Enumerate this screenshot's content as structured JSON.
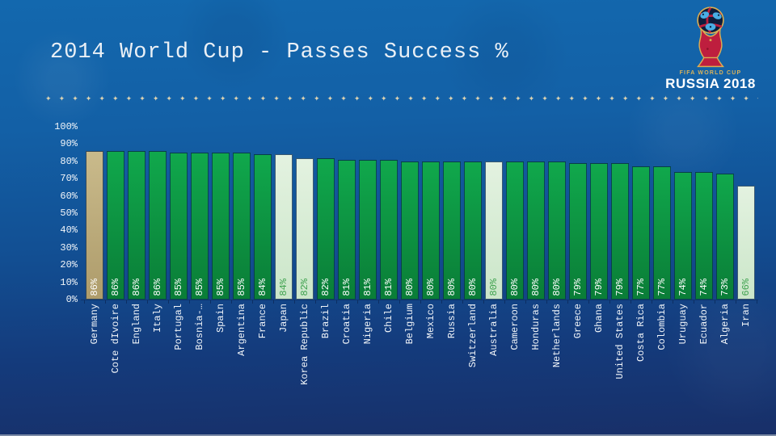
{
  "slide": {
    "title": "2014 World Cup - Passes Success %",
    "divider": {
      "glyph": "✦",
      "count": 108
    },
    "logo": {
      "fifa_line": "FIFA WORLD CUP",
      "russia_line": "RUSSIA 2018"
    }
  },
  "chart_data": {
    "type": "bar",
    "title": "2014 World Cup - Passes Success %",
    "categories": [
      "Germany",
      "Cote dIvoire",
      "England",
      "Italy",
      "Portugal",
      "Bosnia-…",
      "Spain",
      "Argentina",
      "France",
      "Japan",
      "Korea Republic",
      "Brazil",
      "Croatia",
      "Nigeria",
      "Chile",
      "Belgium",
      "Mexico",
      "Russia",
      "Switzerland",
      "Australia",
      "Cameroon",
      "Honduras",
      "Netherlands",
      "Greece",
      "Ghana",
      "United States",
      "Costa Rica",
      "Colombia",
      "Uruguay",
      "Ecuador",
      "Algeria",
      "Iran"
    ],
    "values": [
      86,
      86,
      86,
      86,
      85,
      85,
      85,
      85,
      84,
      84,
      82,
      82,
      81,
      81,
      81,
      80,
      80,
      80,
      80,
      80,
      80,
      80,
      80,
      79,
      79,
      79,
      77,
      77,
      74,
      74,
      73,
      66
    ],
    "value_labels": [
      "86%",
      "86%",
      "86%",
      "86%",
      "85%",
      "85%",
      "85%",
      "85%",
      "84%",
      "84%",
      "82%",
      "82%",
      "81%",
      "81%",
      "81%",
      "80%",
      "80%",
      "80%",
      "80%",
      "80%",
      "80%",
      "80%",
      "80%",
      "79%",
      "79%",
      "79%",
      "77%",
      "77%",
      "74%",
      "74%",
      "73%",
      "66%"
    ],
    "bar_styles": [
      "gold",
      "green",
      "green",
      "green",
      "green",
      "green",
      "green",
      "green",
      "green",
      "pale",
      "pale",
      "green",
      "green",
      "green",
      "green",
      "green",
      "green",
      "green",
      "green",
      "pale",
      "green",
      "green",
      "green",
      "green",
      "green",
      "green",
      "green",
      "green",
      "green",
      "green",
      "green",
      "pale"
    ],
    "y_ticks": [
      "100%",
      "90%",
      "80%",
      "70%",
      "60%",
      "50%",
      "40%",
      "30%",
      "20%",
      "10%",
      "0%"
    ],
    "ylim": [
      0,
      100
    ],
    "xlabel": "",
    "ylabel": "",
    "grid": false,
    "legend": false,
    "colors": {
      "bar_green": "#10A84C",
      "bar_green_dark": "#0A7D37",
      "bar_gold": "#C9BA8B",
      "bar_gold_dark": "#AE9C6B",
      "bar_pale": "#E3F2E0",
      "bar_pale_dark": "#CBE6C9",
      "value_text_on_dark": "#FFFFFF",
      "value_text_on_pale": "#3FA24F",
      "axis_text": "#F2F6FA",
      "background_top": "#1368AE",
      "background_bottom": "#182F68",
      "divider": "#DCD3B2"
    }
  }
}
